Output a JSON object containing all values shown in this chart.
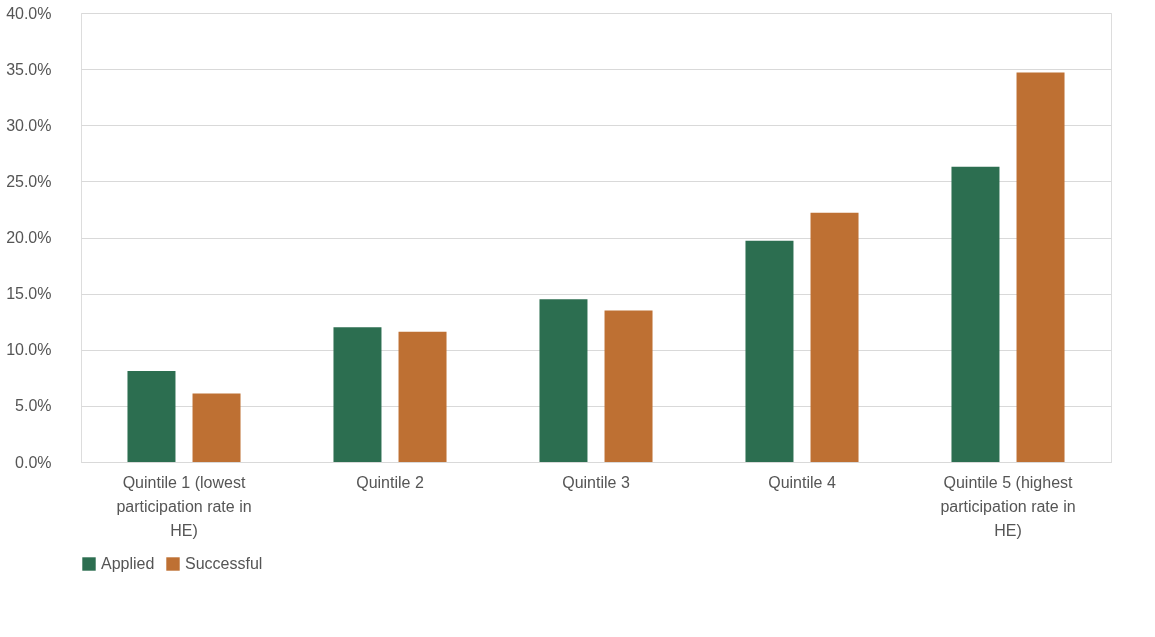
{
  "chart_data": {
    "type": "bar",
    "categories": [
      "Quintile 1 (lowest participation rate in HE)",
      "Quintile 2",
      "Quintile 3",
      "Quintile 4",
      "Quintile 5 (highest participation rate in HE)"
    ],
    "series": [
      {
        "name": "Applied",
        "color": "#2c6e50",
        "values": [
          8.1,
          12.0,
          14.5,
          19.7,
          26.3
        ]
      },
      {
        "name": "Successful",
        "color": "#be7033",
        "values": [
          6.1,
          11.6,
          13.5,
          22.2,
          34.7
        ]
      }
    ],
    "ylim": [
      0,
      40
    ],
    "yticks": [
      {
        "value": 0,
        "label": "0.0%"
      },
      {
        "value": 5,
        "label": "5.0%"
      },
      {
        "value": 10,
        "label": "10.0%"
      },
      {
        "value": 15,
        "label": "15.0%"
      },
      {
        "value": 20,
        "label": "20.0%"
      },
      {
        "value": 25,
        "label": "25.0%"
      },
      {
        "value": 30,
        "label": "30.0%"
      },
      {
        "value": 35,
        "label": "35.0%"
      },
      {
        "value": 40,
        "label": "40.0%"
      }
    ],
    "grid": "y",
    "legend": "bottom"
  }
}
